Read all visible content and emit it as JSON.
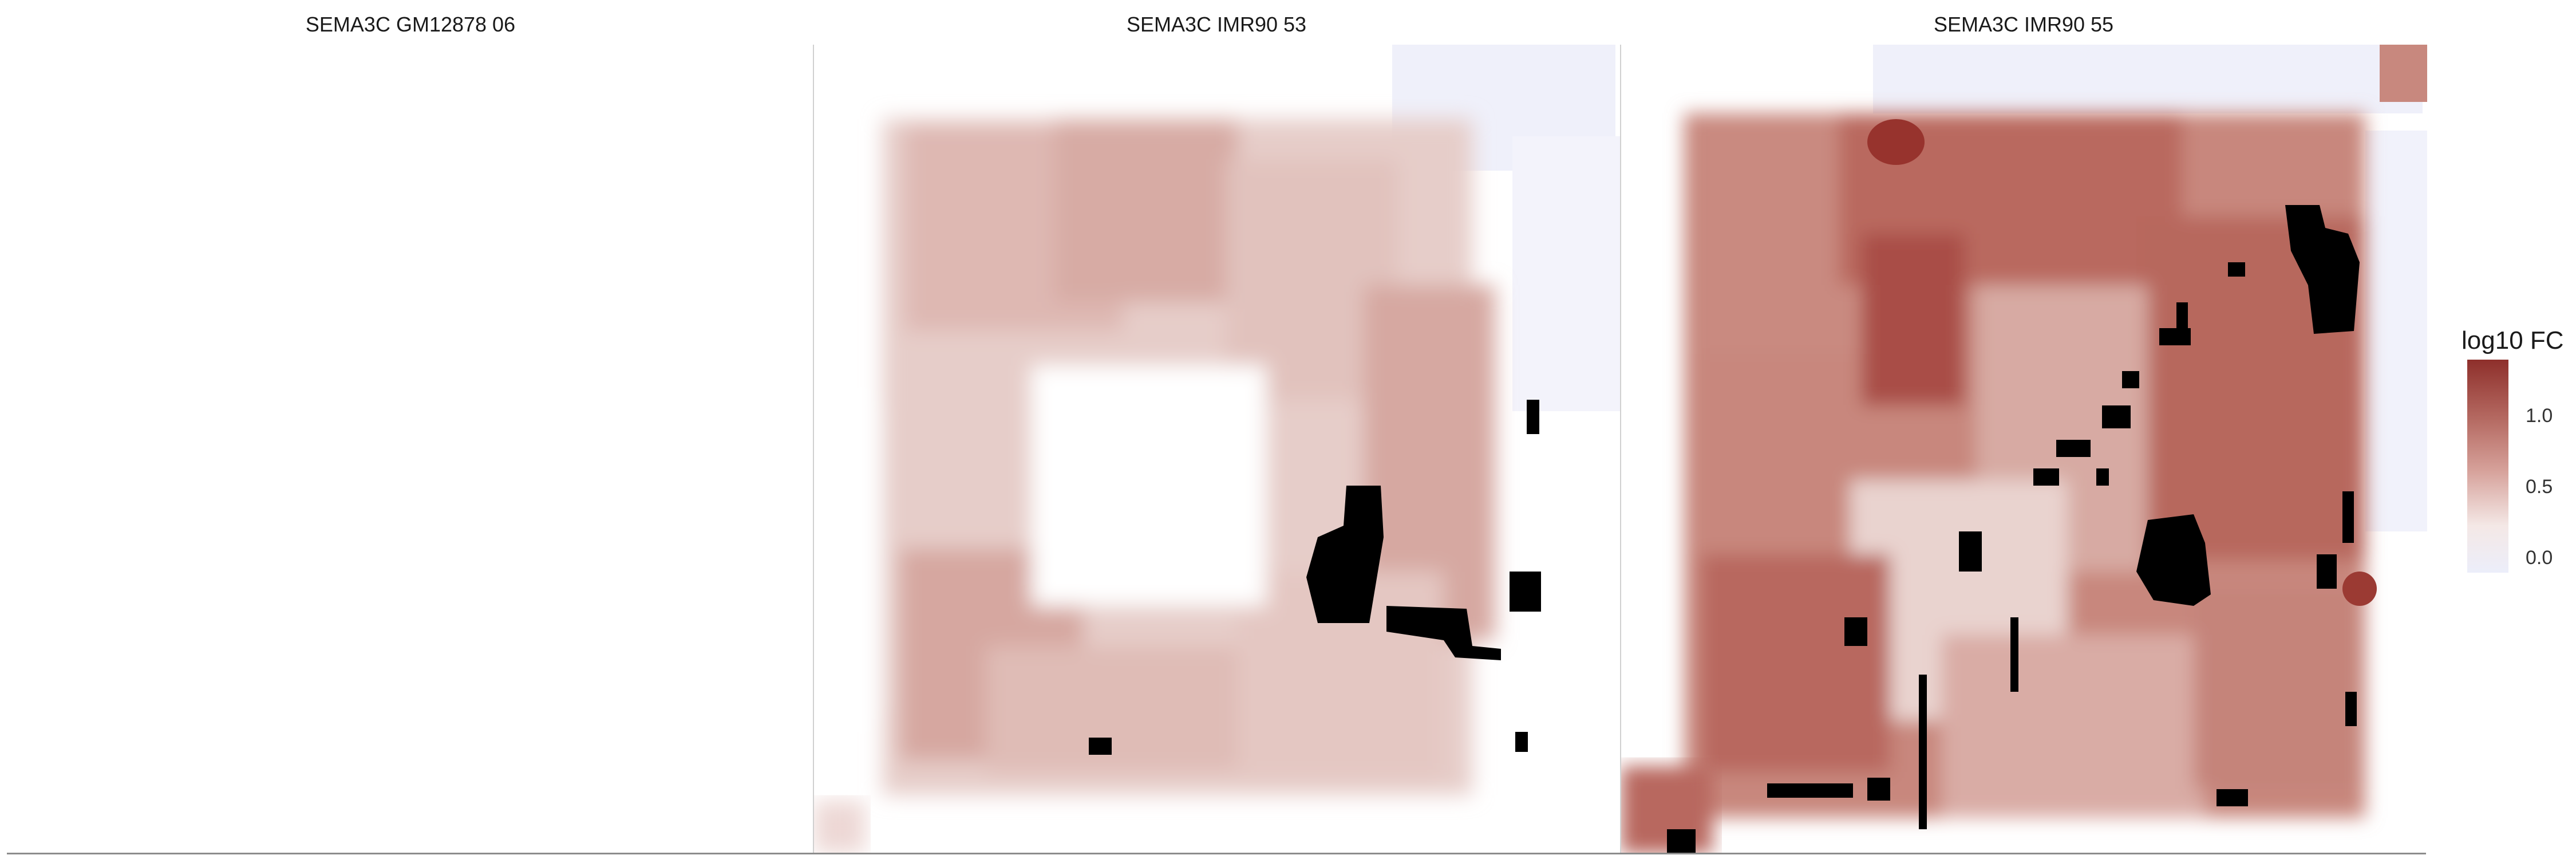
{
  "chart_data": {
    "type": "heatmap",
    "panels": [
      {
        "title": "SEMA3C GM12878 06",
        "empty": true
      },
      {
        "title": "SEMA3C IMR90 53",
        "empty": false
      },
      {
        "title": "SEMA3C IMR90 55",
        "empty": false
      }
    ],
    "legend": {
      "title": "log10 FC",
      "ticks": [
        {
          "label": "1.0",
          "value": 1.0
        },
        {
          "label": "0.5",
          "value": 0.5
        },
        {
          "label": "0.0",
          "value": 0.0
        }
      ],
      "range": [
        -0.1,
        1.4
      ],
      "colors": [
        "#eceefa",
        "#ffffff",
        "#d6a19a",
        "#8e2f2b"
      ],
      "missing_color": "#000000",
      "placement": "right"
    }
  }
}
